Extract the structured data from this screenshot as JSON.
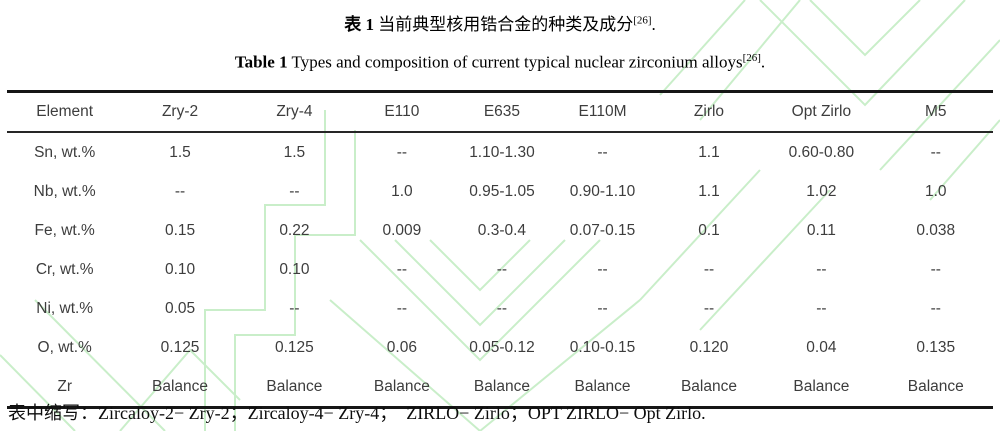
{
  "caption_zh": {
    "label": "表 1",
    "text": " 当前典型核用锆合金的种类及成分",
    "sup": "[26]",
    "period": "."
  },
  "caption_en": {
    "label": "Table 1",
    "text": " Types and composition of current typical nuclear zirconium alloys",
    "sup": "[26]",
    "period": "."
  },
  "table": {
    "headers": [
      "Element",
      "Zry-2",
      "Zry-4",
      "E110",
      "E635",
      "E110M",
      "Zirlo",
      "Opt Zirlo",
      "M5"
    ],
    "col_widths": [
      "11.7%",
      "11.7%",
      "11.5%",
      "10.3%",
      "10.0%",
      "10.4%",
      "11.2%",
      "11.6%",
      "11.6%"
    ],
    "rows": [
      [
        "Sn, wt.%",
        "1.5",
        "1.5",
        "--",
        "1.10-1.30",
        "--",
        "1.1",
        "0.60-0.80",
        "--"
      ],
      [
        "Nb, wt.%",
        "--",
        "--",
        "1.0",
        "0.95-1.05",
        "0.90-1.10",
        "1.1",
        "1.02",
        "1.0"
      ],
      [
        "Fe, wt.%",
        "0.15",
        "0.22",
        "0.009",
        "0.3-0.4",
        "0.07-0.15",
        "0.1",
        "0.11",
        "0.038"
      ],
      [
        "Cr, wt.%",
        "0.10",
        "0.10",
        "--",
        "--",
        "--",
        "--",
        "--",
        "--"
      ],
      [
        "Ni, wt.%",
        "0.05",
        "--",
        "--",
        "--",
        "--",
        "--",
        "--",
        "--"
      ],
      [
        "O, wt.%",
        "0.125",
        "0.125",
        "0.06",
        "0.05-0.12",
        "0.10-0.15",
        "0.120",
        "0.04",
        "0.135"
      ],
      [
        "Zr",
        "Balance",
        "Balance",
        "Balance",
        "Balance",
        "Balance",
        "Balance",
        "Balance",
        "Balance"
      ]
    ]
  },
  "footnote": "表中缩写：Zircaloy-2− Zry-2；Zircaloy-4− Zry-4；　ZIRLO− Zirlo；OPT ZIRLO− Opt Zirlo.",
  "colors": {
    "watermark": "#c9eec9",
    "rule": "#161616",
    "table_text": "#3d3d3d"
  }
}
